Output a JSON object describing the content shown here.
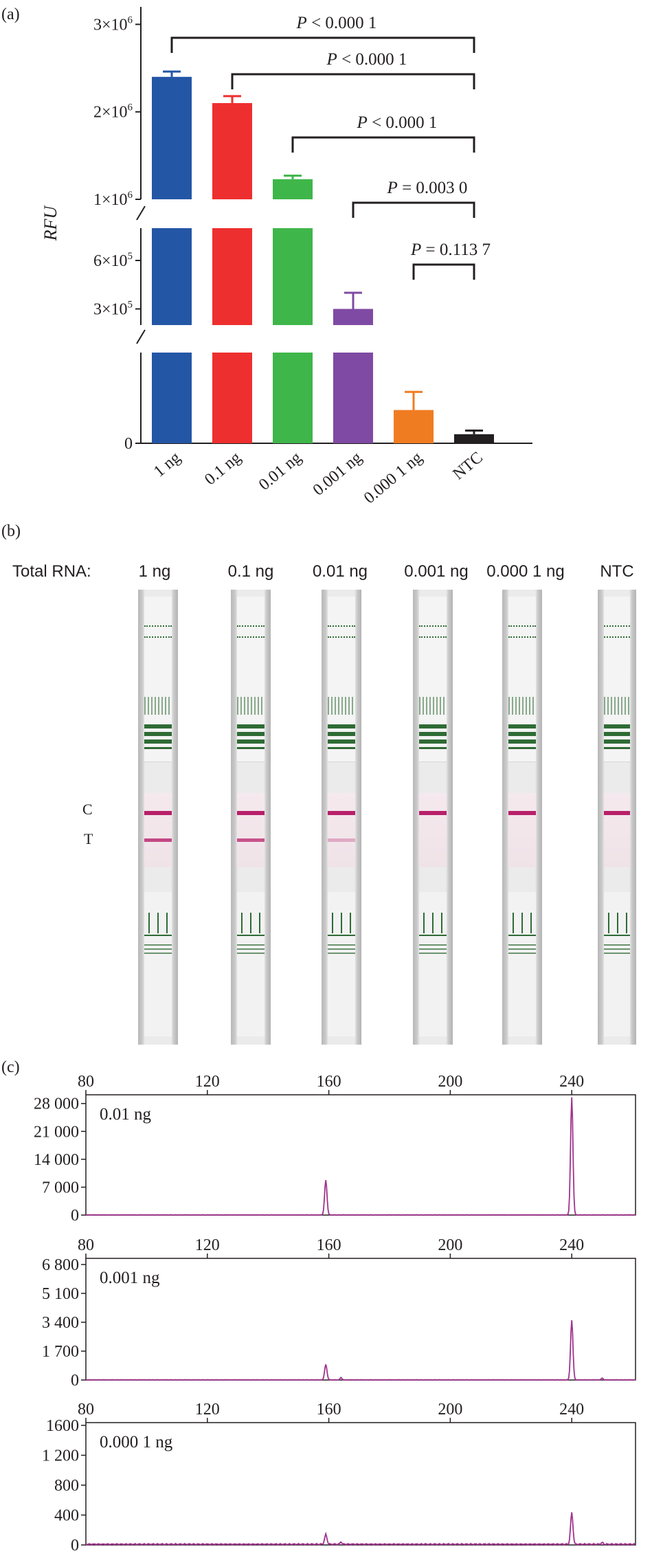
{
  "panel_a": {
    "label": "(a)",
    "chart_data": {
      "type": "bar",
      "categories": [
        "1 ng",
        "0.1 ng",
        "0.01 ng",
        "0.001 ng",
        "0.000 1 ng",
        "NTC"
      ],
      "values": [
        2400000,
        2100000,
        1230000,
        300000,
        11000,
        3000
      ],
      "errors": [
        60000,
        80000,
        40000,
        100000,
        6000,
        1200
      ],
      "colors": [
        "#2456a6",
        "#ee2f2f",
        "#3fb64a",
        "#7f4aa3",
        "#f07c22",
        "#231f20"
      ],
      "ylabel": "RFU",
      "axis_breaks": true,
      "yticks": [
        {
          "label_base": "3×10",
          "exp": "6",
          "value": 3000000
        },
        {
          "label_base": "2×10",
          "exp": "6",
          "value": 2000000
        },
        {
          "label_base": "1×10",
          "exp": "6",
          "value": 1000000
        },
        {
          "label_base": "6×10",
          "exp": "5",
          "value": 600000
        },
        {
          "label_base": "3×10",
          "exp": "5",
          "value": 300000
        },
        {
          "label_base": "0",
          "exp": "",
          "value": 0
        }
      ],
      "comparisons": [
        {
          "text": "P < 0.000 1",
          "from": 0,
          "to": 5
        },
        {
          "text": "P < 0.000 1",
          "from": 1,
          "to": 5
        },
        {
          "text": "P < 0.000 1",
          "from": 2,
          "to": 5
        },
        {
          "text": "P = 0.003 0",
          "from": 3,
          "to": 5
        },
        {
          "text": "P = 0.113 7",
          "from": 4,
          "to": 5
        }
      ]
    }
  },
  "panel_b": {
    "label": "(b)",
    "row_label": "Total RNA:",
    "strips": [
      "1 ng",
      "0.1 ng",
      "0.01 ng",
      "0.001 ng",
      "0.000 1 ng",
      "NTC"
    ],
    "t_line_intensity": [
      0.8,
      0.75,
      0.3,
      0,
      0,
      0
    ],
    "line_c": "C",
    "line_t": "T",
    "line_color": "#b8206a",
    "green_color": "#2f6b35"
  },
  "panel_c": {
    "label": "(c)",
    "line_color": "#a0328c",
    "chart_data": [
      {
        "type": "line",
        "sample": "0.01 ng",
        "xticks": [
          80,
          120,
          160,
          200,
          240
        ],
        "xlim": [
          80,
          261
        ],
        "ytick_labels": [
          "28 000",
          "21 000",
          "14 000",
          "7 000",
          "0"
        ],
        "ytick_values": [
          28000,
          21000,
          14000,
          7000,
          0
        ],
        "ylim": [
          0,
          29500
        ],
        "peaks": [
          {
            "x": 159,
            "y": 8700
          },
          {
            "x": 240,
            "y": 29500
          }
        ]
      },
      {
        "type": "line",
        "sample": "0.001 ng",
        "xticks": [
          80,
          120,
          160,
          200,
          240
        ],
        "xlim": [
          80,
          261
        ],
        "ytick_labels": [
          "6 800",
          "5 100",
          "3 400",
          "1 700",
          "0"
        ],
        "ytick_values": [
          6800,
          5100,
          3400,
          1700,
          0
        ],
        "ylim": [
          0,
          7000
        ],
        "peaks": [
          {
            "x": 159,
            "y": 900
          },
          {
            "x": 240,
            "y": 3500
          }
        ]
      },
      {
        "type": "line",
        "sample": "0.000 1 ng",
        "xticks": [
          80,
          120,
          160,
          200,
          240
        ],
        "xlim": [
          80,
          261
        ],
        "ytick_labels": [
          "1600",
          "1 200",
          "800",
          "400",
          "0"
        ],
        "ytick_values": [
          1600,
          1200,
          800,
          400,
          0
        ],
        "ylim": [
          0,
          1600
        ],
        "peaks": [
          {
            "x": 159,
            "y": 130
          },
          {
            "x": 240,
            "y": 420
          }
        ]
      }
    ]
  }
}
